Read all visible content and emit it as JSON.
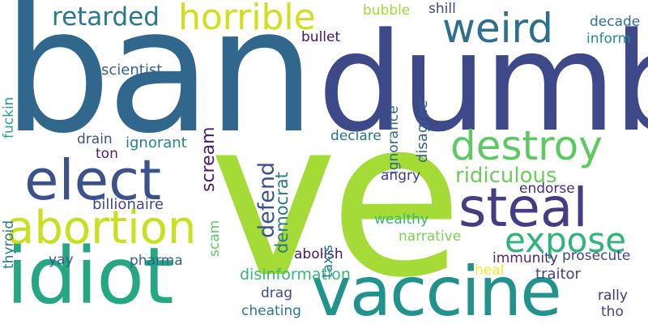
{
  "words": {
    "ban": "ban",
    "dumb": "dumb",
    "ve": "ve",
    "idiot": "idiot",
    "vaccine": "vaccine",
    "elect": "elect",
    "steal": "steal",
    "destroy": "destroy",
    "abortion": "abortion",
    "expose": "expose",
    "horrible": "horrible",
    "retarded": "retarded",
    "weird": "weird",
    "ridiculous": "ridiculous",
    "defend": "defend",
    "democrat": "democrat",
    "scream": "scream",
    "disagree": "disagree",
    "ignorance": "ignorance",
    "bubble": "bubble",
    "shill": "shill",
    "decade": "decade",
    "inform": "inform",
    "bullet": "bullet",
    "scientist": "scientist",
    "fuckin": "fuckin",
    "declare": "declare",
    "drain": "drain",
    "ignorant": "ignorant",
    "ton": "ton",
    "thyroid": "thyroid",
    "billionaire": "billionaire",
    "scam": "scam",
    "taxis": "taxis",
    "angry": "angry",
    "endorse": "endorse",
    "wealthy": "wealthy",
    "narrative": "narrative",
    "abolish": "abolish",
    "heal": "heal",
    "immunity": "immunity",
    "prosecute": "prosecute",
    "yay": "yay",
    "pharma": "pharma",
    "disinformation": "disinformation",
    "traitor": "traitor",
    "drag": "drag",
    "rally": "rally",
    "cheating": "cheating",
    "tho": "tho"
  },
  "colors": {
    "ban": "#31668d",
    "dumb": "#3e4989",
    "ve": "#a5db36",
    "idiot": "#25a784",
    "vaccine": "#21928c",
    "elect": "#3b528b",
    "steal": "#433d84",
    "destroy": "#5ec962",
    "abortion": "#c8e020",
    "expose": "#2fb47c",
    "horrible": "#d0e11c",
    "retarded": "#2a788e",
    "weird": "#2e6f8e",
    "ridiculous": "#6ccd5a",
    "defend": "#3b528b",
    "democrat": "#2a788e",
    "scream": "#481d6f",
    "disagree": "#355f8d",
    "ignorance": "#31688e",
    "bubble": "#9fda3a",
    "shill": "#414487",
    "decade": "#2c718e",
    "inform": "#21918c",
    "bullet": "#471365",
    "scientist": "#33638d",
    "fuckin": "#21a685",
    "declare": "#2c728e",
    "drain": "#3b528b",
    "ignorant": "#25838e",
    "ton": "#481f70",
    "thyroid": "#2a788e",
    "billionaire": "#3f4788",
    "scam": "#5ec962",
    "taxis": "#2a788e",
    "angry": "#443a83",
    "endorse": "#472d7b",
    "wealthy": "#35b779",
    "narrative": "#7ad151",
    "abolish": "#481467",
    "heal": "#fde725",
    "immunity": "#472c7a",
    "prosecute": "#3e4a89",
    "yay": "#38588c",
    "pharma": "#33638d",
    "disinformation": "#35b779",
    "traitor": "#424086",
    "drag": "#3e4989",
    "rally": "#46327e",
    "cheating": "#2a778e",
    "tho": "#414487"
  }
}
